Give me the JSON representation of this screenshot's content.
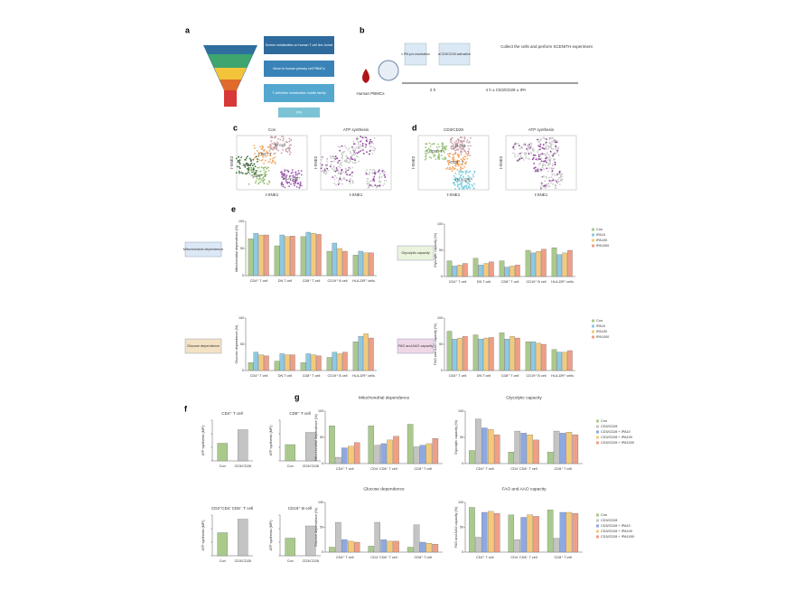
{
  "panel_a": {
    "label": "a",
    "steps": [
      "Screen metabolites on human T cell line Jurkat",
      "Move to human primary cell PBMCs",
      "T-cell/other metabolites mobile family",
      "IPA"
    ]
  },
  "panel_b": {
    "label": "b",
    "source": "Human PBMCs",
    "box1": "± IPA pre-incubation",
    "box2": "αCD3/CD28 activation",
    "t1": "2 h",
    "t2": "4 h ± CD3/CD28 ± IPA",
    "end": "Collect the cells and perform SCENITH experiment"
  },
  "panel_c": {
    "label": "c",
    "titles": [
      "Con",
      "ATP synthesis"
    ],
    "clusters": [
      "B cell",
      "CD4⁺ T",
      "DN T",
      "CD8⁺ T",
      "HLA-DR⁺"
    ],
    "xlabel": "t-SNE1",
    "ylabel": "t-SNE2"
  },
  "panel_d": {
    "label": "d",
    "titles": [
      "CD3/CD28",
      "ATP synthesis"
    ],
    "clusters": [
      "B cell",
      "CD8⁺ T",
      "CD4⁺ T",
      "HLA-DR⁺"
    ],
    "xlabel": "t-SNE1",
    "ylabel": "t-SNE2"
  },
  "panel_e": {
    "label": "e",
    "legend": [
      {
        "name": "Con",
        "color": "#a9ca8c"
      },
      {
        "name": "IPA10",
        "color": "#8ec9e2"
      },
      {
        "name": "IPA100",
        "color": "#f3ca7c"
      },
      {
        "name": "IPA1000",
        "color": "#ee9f86"
      }
    ],
    "categories": [
      "CD4⁺ T cell",
      "DN T cell",
      "CD8⁺ T cell",
      "CD19⁺ B cell",
      "HLA-DR⁺ cells"
    ],
    "charts": [
      {
        "box": "Mitochondrial dependence",
        "ylabel": "Mitochondrial dependence (%)",
        "ylim": [
          0,
          100
        ],
        "yticks": [
          0,
          50,
          100
        ],
        "values": [
          [
            68,
            55,
            72,
            45,
            38
          ],
          [
            78,
            75,
            80,
            60,
            45
          ],
          [
            75,
            72,
            78,
            50,
            42
          ],
          [
            75,
            73,
            76,
            45,
            42
          ]
        ]
      },
      {
        "box": "Glycolytic capacity",
        "ylabel": "Glycolytic capacity (%)",
        "ylim": [
          0,
          100
        ],
        "yticks": [
          0,
          50,
          100
        ],
        "values": [
          [
            30,
            35,
            30,
            50,
            55
          ],
          [
            20,
            22,
            18,
            45,
            42
          ],
          [
            22,
            25,
            20,
            48,
            45
          ],
          [
            25,
            28,
            22,
            52,
            50
          ]
        ]
      },
      {
        "box": "Glucose dependence",
        "ylabel": "Glucose dependence (%)",
        "ylim": [
          0,
          100
        ],
        "yticks": [
          0,
          50,
          100
        ],
        "values": [
          [
            15,
            18,
            15,
            25,
            55
          ],
          [
            35,
            32,
            32,
            35,
            65
          ],
          [
            30,
            30,
            30,
            32,
            70
          ],
          [
            28,
            30,
            28,
            35,
            62
          ]
        ]
      },
      {
        "box": "FAO and AAO capacity",
        "ylabel": "FAO and AAO capacity (%)",
        "ylim": [
          0,
          100
        ],
        "yticks": [
          0,
          50,
          100
        ],
        "values": [
          [
            75,
            68,
            72,
            55,
            40
          ],
          [
            60,
            60,
            60,
            55,
            35
          ],
          [
            62,
            62,
            65,
            52,
            35
          ],
          [
            65,
            63,
            62,
            50,
            38
          ]
        ]
      }
    ]
  },
  "panel_f": {
    "label": "f",
    "categories": [
      "Con",
      "CD3/CD28"
    ],
    "colors": [
      "#a9ca8c",
      "#c4c4c4"
    ],
    "ylabel": "ATP synthesis (MFI)",
    "ylim": [
      0,
      3000
    ],
    "yticks": [
      0,
      {
        "value": 1000,
        "label": "1,000"
      },
      {
        "value": 2000,
        "label": "2,000"
      },
      {
        "value": 3000,
        "label": "3,000"
      }
    ],
    "charts": [
      {
        "title": "CD4⁺ T cell",
        "values": [
          1300,
          2300
        ]
      },
      {
        "title": "CD8⁺ T cell",
        "values": [
          1200,
          2100
        ]
      },
      {
        "title": "CD3⁺CD4⁻CD8⁻ T cell",
        "values": [
          1700,
          2700
        ]
      },
      {
        "title": "CD19⁺ B cell",
        "values": [
          1300,
          2200
        ]
      }
    ]
  },
  "panel_g": {
    "label": "g",
    "legend": [
      {
        "name": "Con",
        "color": "#a9ca8c"
      },
      {
        "name": "CD3/CD28",
        "color": "#c4c4c4"
      },
      {
        "name": "CD3/CD28 + IPA10",
        "color": "#8ea9e2"
      },
      {
        "name": "CD3/CD28 + IPA100",
        "color": "#f3ca7c"
      },
      {
        "name": "CD3/CD28 + IPA1000",
        "color": "#ee9f86"
      }
    ],
    "categories": [
      "CD4⁺ T cell",
      "CD4⁻CD8⁻ T cell",
      "CD8⁺ T cell"
    ],
    "charts": [
      {
        "title": "Mitochondrial dependence",
        "ylabel": "Mitochondrial dependence (%)",
        "ylim": [
          0,
          100
        ],
        "yticks": [
          0,
          50,
          100
        ],
        "values": [
          [
            72,
            72,
            75
          ],
          [
            12,
            35,
            32
          ],
          [
            30,
            38,
            35
          ],
          [
            33,
            45,
            38
          ],
          [
            40,
            52,
            48
          ]
        ]
      },
      {
        "title": "Glycolytic capacity",
        "ylabel": "Glycolytic capacity (%)",
        "ylim": [
          0,
          100
        ],
        "yticks": [
          0,
          50,
          100
        ],
        "values": [
          [
            25,
            22,
            22
          ],
          [
            85,
            62,
            62
          ],
          [
            68,
            58,
            58
          ],
          [
            65,
            55,
            60
          ],
          [
            55,
            45,
            55
          ]
        ]
      },
      {
        "title": "Glucose dependence",
        "ylabel": "Glucose dependence (%)",
        "ylim": [
          0,
          100
        ],
        "yticks": [
          0,
          50,
          100
        ],
        "values": [
          [
            10,
            12,
            10
          ],
          [
            60,
            60,
            55
          ],
          [
            25,
            25,
            20
          ],
          [
            22,
            22,
            18
          ],
          [
            20,
            22,
            16
          ]
        ]
      },
      {
        "title": "FAO and AAO capacity",
        "ylabel": "FAO and AAO capacity (%)",
        "ylim": [
          0,
          100
        ],
        "yticks": [
          0,
          50,
          100
        ],
        "values": [
          [
            90,
            75,
            85
          ],
          [
            30,
            25,
            28
          ],
          [
            80,
            70,
            80
          ],
          [
            82,
            75,
            80
          ],
          [
            78,
            72,
            78
          ]
        ]
      }
    ]
  }
}
